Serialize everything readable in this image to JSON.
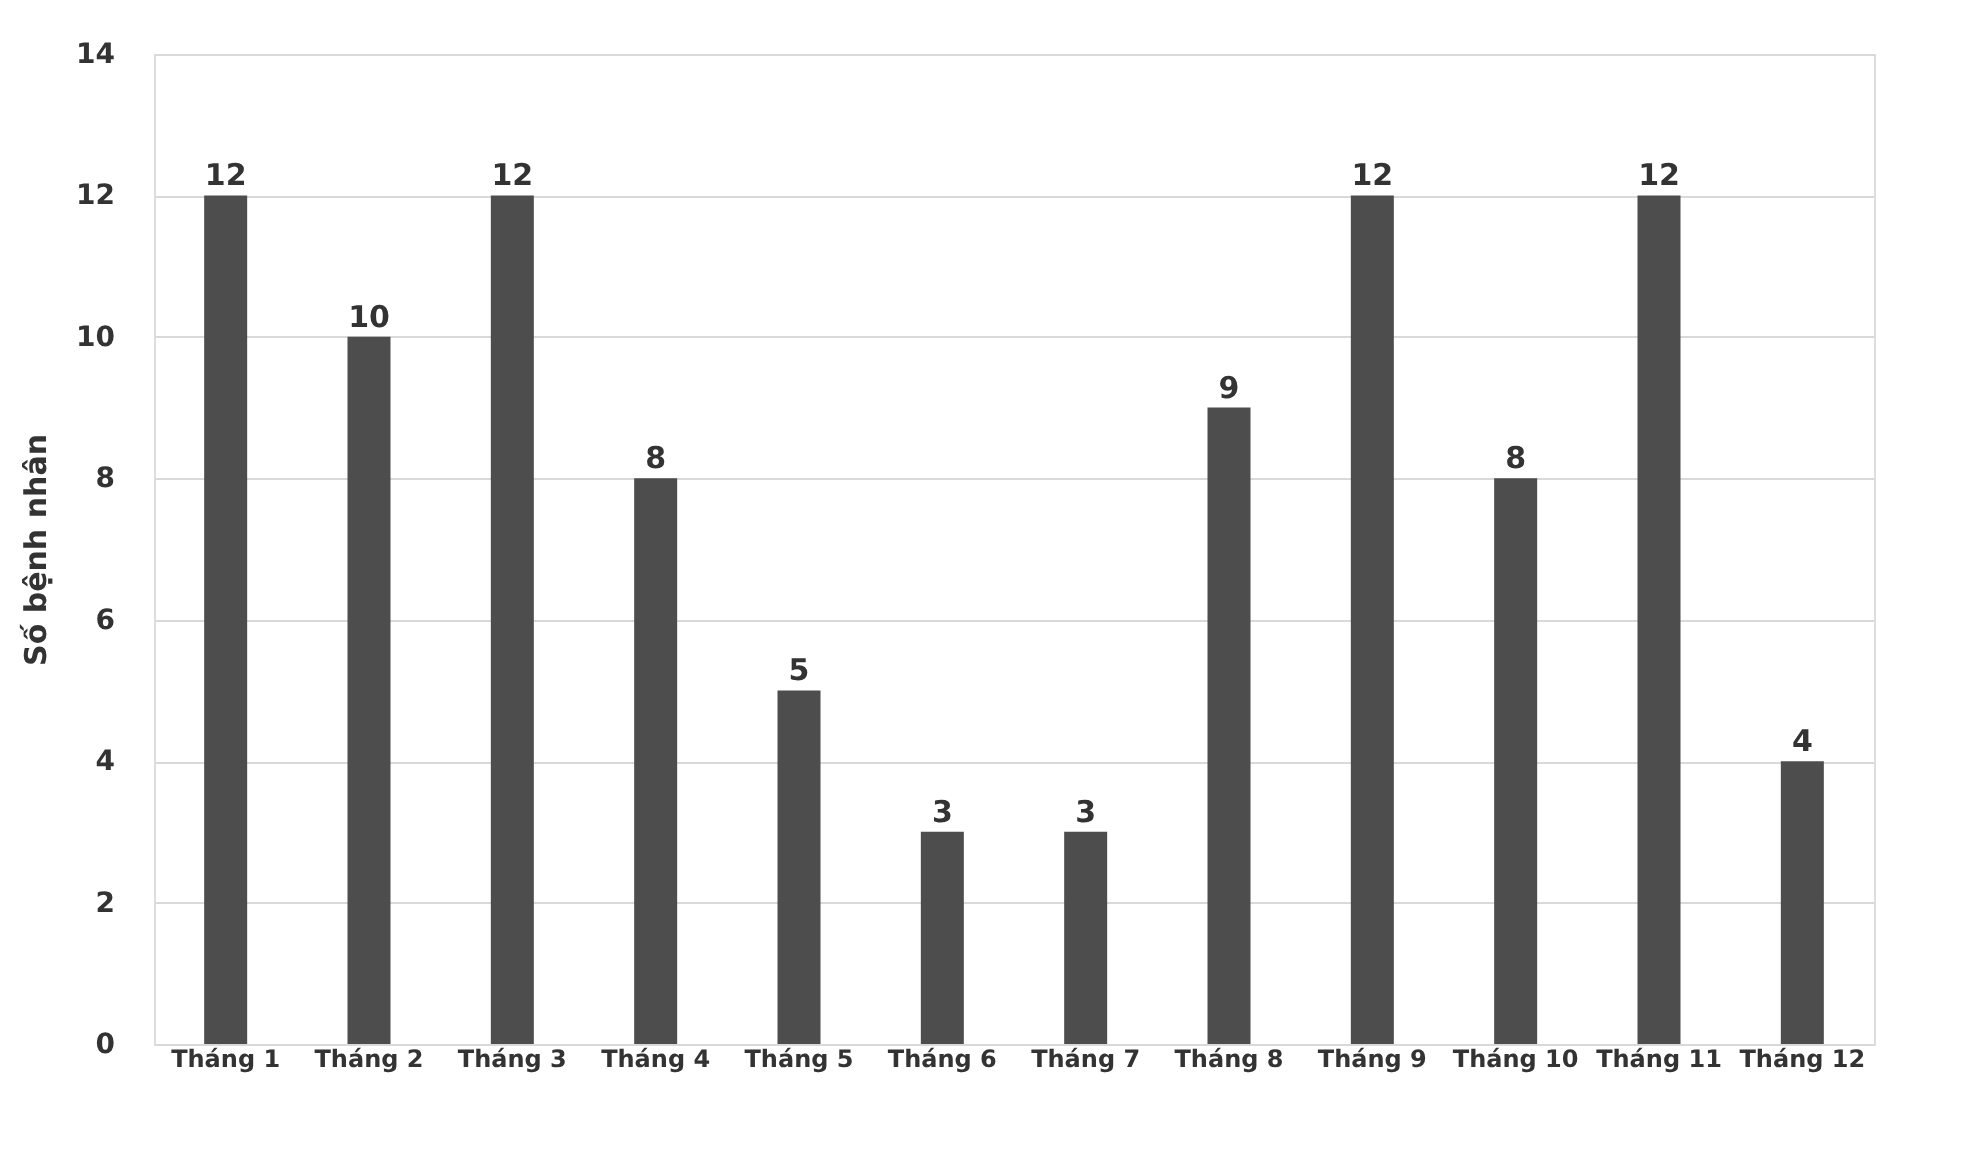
{
  "chart_data": {
    "type": "bar",
    "ylabel": "Số bệnh nhân",
    "categories": [
      "Tháng 1",
      "Tháng 2",
      "Tháng 3",
      "Tháng 4",
      "Tháng 5",
      "Tháng 6",
      "Tháng 7",
      "Tháng 8",
      "Tháng 9",
      "Tháng 10",
      "Tháng 11",
      "Tháng 12"
    ],
    "values": [
      12,
      10,
      12,
      8,
      5,
      3,
      3,
      9,
      12,
      8,
      12,
      4
    ],
    "color": "#4d4d4d",
    "ylim": [
      0,
      14
    ],
    "yticks": [
      0,
      2,
      4,
      6,
      8,
      10,
      12,
      14
    ],
    "grid": "y",
    "data_labels": true
  }
}
